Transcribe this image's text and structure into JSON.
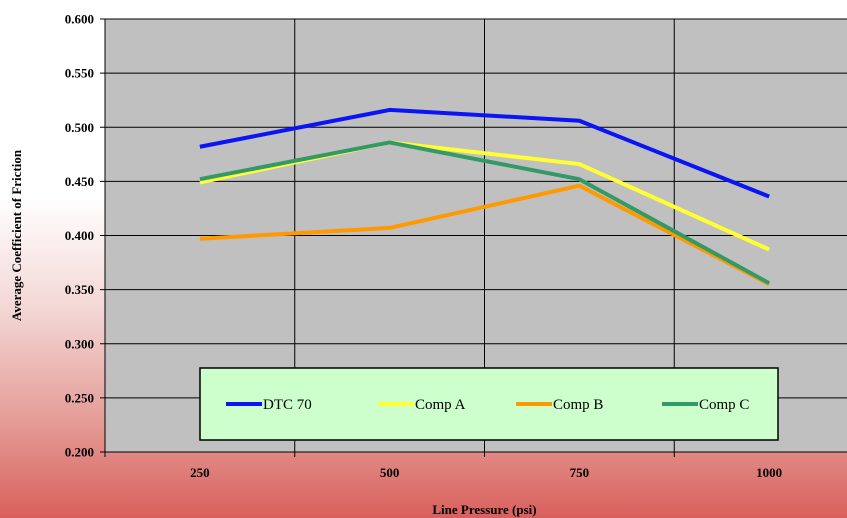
{
  "chart_data": {
    "type": "line",
    "title": "",
    "xlabel": "Line Pressure (psi)",
    "ylabel": "Average Coefficient of Friction",
    "categories": [
      "250",
      "500",
      "750",
      "1000"
    ],
    "ylim": [
      0.2,
      0.6
    ],
    "y_ticks": [
      "0.200",
      "0.250",
      "0.300",
      "0.350",
      "0.400",
      "0.450",
      "0.500",
      "0.550",
      "0.600"
    ],
    "grid": true,
    "legend_position": "bottom-inside",
    "colors": {
      "plot_background": "#c0c0c0",
      "legend_background": "#ccffcc"
    },
    "series": [
      {
        "name": "DTC 70",
        "color": "#0a14f5",
        "values": [
          0.482,
          0.516,
          0.506,
          0.436
        ]
      },
      {
        "name": "Comp A",
        "color": "#ffff33",
        "values": [
          0.449,
          0.486,
          0.466,
          0.387
        ]
      },
      {
        "name": "Comp B",
        "color": "#ff9900",
        "values": [
          0.397,
          0.407,
          0.446,
          0.355
        ]
      },
      {
        "name": "Comp C",
        "color": "#339966",
        "values": [
          0.452,
          0.486,
          0.452,
          0.356
        ]
      }
    ]
  }
}
